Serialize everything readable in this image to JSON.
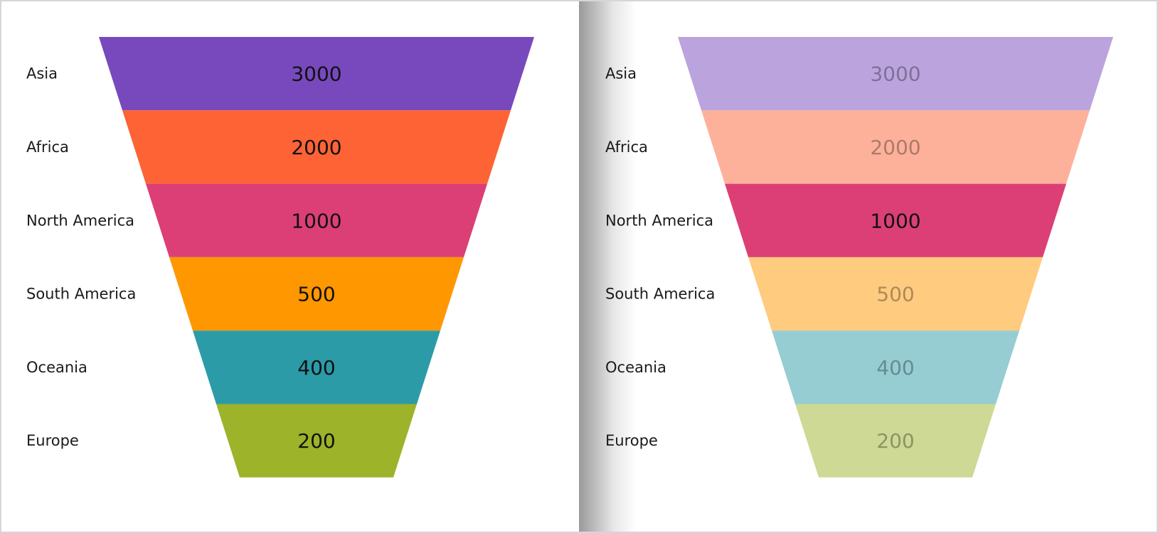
{
  "chart_data": [
    {
      "type": "funnel",
      "categories": [
        "Asia",
        "Africa",
        "North America",
        "South America",
        "Oceania",
        "Europe"
      ],
      "values": [
        3000,
        2000,
        1000,
        500,
        400,
        200
      ],
      "colors": [
        "#7849bd",
        "#fd6335",
        "#dc3f75",
        "#ff9700",
        "#2b9ba8",
        "#9cb32a"
      ],
      "highlighted": null
    },
    {
      "type": "funnel",
      "categories": [
        "Asia",
        "Africa",
        "North America",
        "South America",
        "Oceania",
        "Europe"
      ],
      "values": [
        3000,
        2000,
        1000,
        500,
        400,
        200
      ],
      "colors": [
        "#7849bd",
        "#fd6335",
        "#dc3f75",
        "#ff9700",
        "#2b9ba8",
        "#9cb32a"
      ],
      "highlighted": "North America"
    }
  ]
}
